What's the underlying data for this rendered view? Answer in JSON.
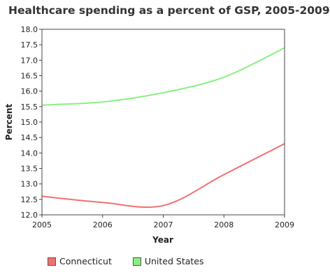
{
  "chart_data": {
    "type": "line",
    "title": "Healthcare spending as a percent of GSP, 2005-2009",
    "xlabel": "Year",
    "ylabel": "Percent",
    "x": [
      2005,
      2006,
      2007,
      2008,
      2009
    ],
    "xlim": [
      2005,
      2009
    ],
    "ylim": [
      12.0,
      18.0
    ],
    "y_ticks": [
      12.0,
      12.5,
      13.0,
      13.5,
      14.0,
      14.5,
      15.0,
      15.5,
      16.0,
      16.5,
      17.0,
      17.5,
      18.0
    ],
    "x_tick_labels": [
      "2005",
      "2006",
      "2007",
      "2008",
      "2009"
    ],
    "y_tick_labels": [
      "12.0",
      "12.5",
      "13.0",
      "13.5",
      "14.0",
      "14.5",
      "15.0",
      "15.5",
      "16.0",
      "16.5",
      "17.0",
      "17.5",
      "18.0"
    ],
    "grid": false,
    "legend_position": "bottom",
    "series": [
      {
        "name": "Connecticut",
        "color": "#f07070",
        "values": [
          12.6,
          12.4,
          12.3,
          13.3,
          14.3
        ]
      },
      {
        "name": "United States",
        "color": "#88f080",
        "values": [
          15.55,
          15.65,
          15.95,
          16.45,
          17.4
        ]
      }
    ]
  }
}
